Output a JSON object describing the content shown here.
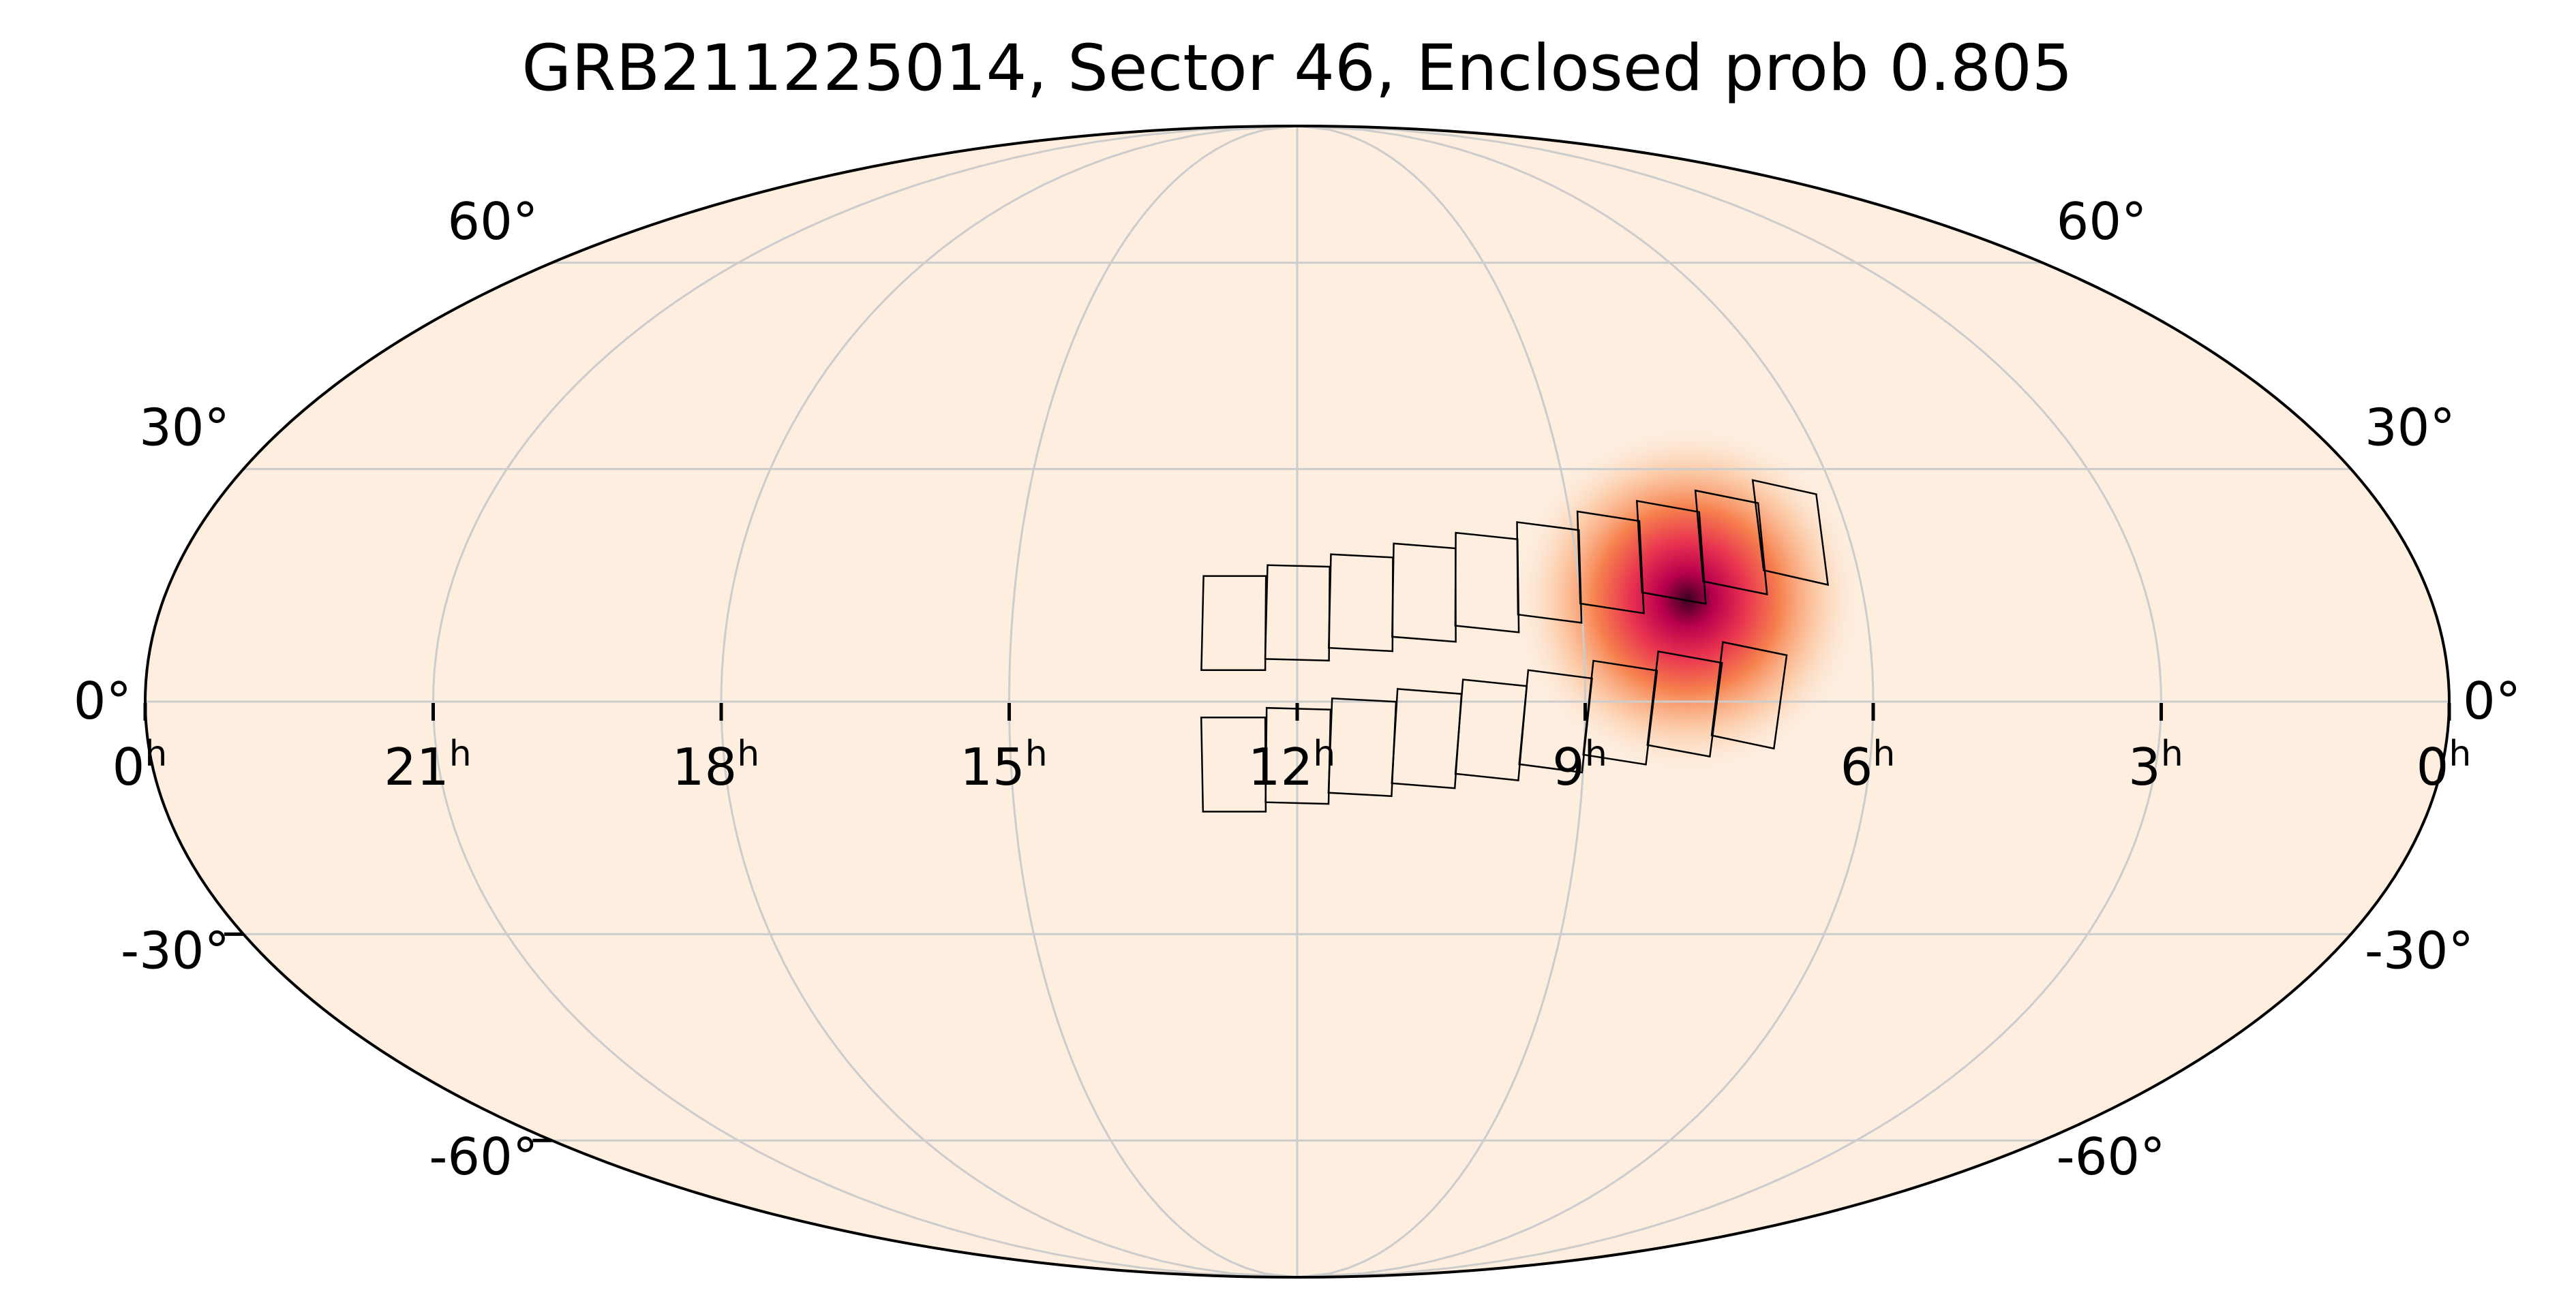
{
  "title": "GRB211225014, Sector 46, Enclosed prob 0.805",
  "projection": "mollweide",
  "colors": {
    "background": "#fdeee0",
    "outline": "#000000",
    "graticule": "#cccccc",
    "footprint": "#000000",
    "colormap": [
      "#fdeee0",
      "#fcc39a",
      "#f6814e",
      "#e8314f",
      "#b8004e",
      "#3b0020"
    ]
  },
  "ra_labels": [
    {
      "base": "0",
      "sup": "h",
      "ra_hours": 24
    },
    {
      "base": "21",
      "sup": "h",
      "ra_hours": 21
    },
    {
      "base": "18",
      "sup": "h",
      "ra_hours": 18
    },
    {
      "base": "15",
      "sup": "h",
      "ra_hours": 15
    },
    {
      "base": "12",
      "sup": "h",
      "ra_hours": 12
    },
    {
      "base": "9",
      "sup": "h",
      "ra_hours": 9
    },
    {
      "base": "6",
      "sup": "h",
      "ra_hours": 6
    },
    {
      "base": "3",
      "sup": "h",
      "ra_hours": 3
    },
    {
      "base": "0",
      "sup": "h",
      "ra_hours": 0
    }
  ],
  "dec_labels": [
    {
      "text": "60°",
      "dec": 60
    },
    {
      "text": "30°",
      "dec": 30
    },
    {
      "text": "0°",
      "dec": 0
    },
    {
      "text": "-30°",
      "dec": -30
    },
    {
      "text": "-60°",
      "dec": -60
    }
  ],
  "probability_peak": {
    "ra_deg": 118,
    "dec_deg": 13,
    "sigma_deg": 9
  },
  "footprint": {
    "rows": [
      {
        "ra_start_deg": 190,
        "ra_step_deg": -10.1,
        "dec_deg": -8,
        "count": 9
      },
      {
        "ra_start_deg": 190,
        "ra_step_deg": -10.1,
        "dec_deg": 10,
        "count": 10
      }
    ],
    "tile_ra_width_deg": 10,
    "tile_dec_height_deg": 12
  }
}
